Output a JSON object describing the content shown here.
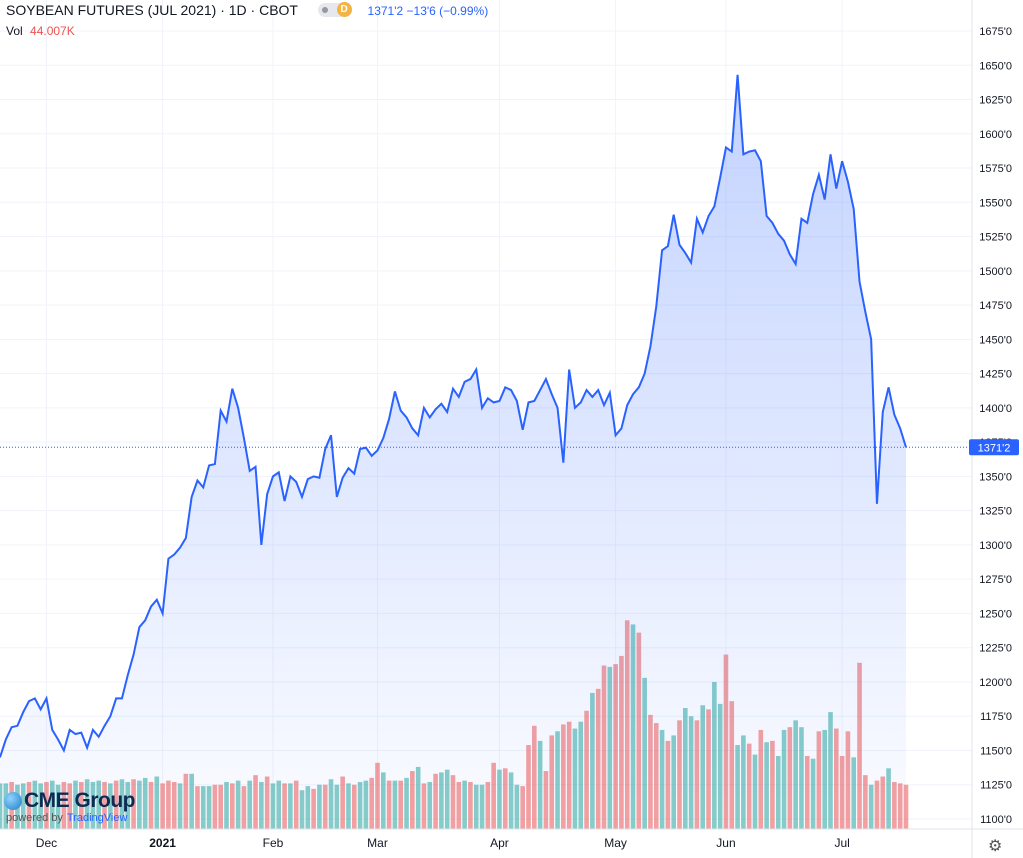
{
  "header": {
    "title": "SOYBEAN FUTURES (JUL 2021) · 1D · CBOT",
    "badge": "D",
    "quote": "1371'2 −13'6 (−0.99%)",
    "vol_label": "Vol",
    "vol_value": "44.007K"
  },
  "branding": {
    "logo_text": "CME Group",
    "powered_by": "powered by",
    "powered_brand": "TradingView"
  },
  "colors": {
    "line": "#2962ff",
    "vol_up": "#26a69a",
    "vol_down": "#ef5350",
    "price_tag": "#2962ff"
  },
  "icons": {
    "settings": "gear-icon"
  },
  "chart_data": {
    "type": "area",
    "y_ticks": [
      "1675'0",
      "1650'0",
      "1625'0",
      "1600'0",
      "1575'0",
      "1550'0",
      "1525'0",
      "1500'0",
      "1475'0",
      "1450'0",
      "1425'0",
      "1400'0",
      "1375'0",
      "1350'0",
      "1325'0",
      "1300'0",
      "1275'0",
      "1250'0",
      "1225'0",
      "1200'0",
      "1175'0",
      "1150'0",
      "1125'0",
      "1100'0"
    ],
    "y_tick_values": [
      1675,
      1650,
      1625,
      1600,
      1575,
      1550,
      1525,
      1500,
      1475,
      1450,
      1425,
      1400,
      1375,
      1350,
      1325,
      1300,
      1275,
      1250,
      1225,
      1200,
      1175,
      1150,
      1125,
      1100
    ],
    "ylim": [
      1100,
      1675
    ],
    "x_labels": [
      {
        "label": "Dec",
        "index": 8
      },
      {
        "label": "2021",
        "index": 28
      },
      {
        "label": "Feb",
        "index": 47
      },
      {
        "label": "Mar",
        "index": 65
      },
      {
        "label": "Apr",
        "index": 86
      },
      {
        "label": "May",
        "index": 106
      },
      {
        "label": "Jun",
        "index": 125
      },
      {
        "label": "Jul",
        "index": 145
      }
    ],
    "last_price": 1371.25,
    "last_price_label": "1371'2",
    "price": [
      1145,
      1158,
      1167,
      1168,
      1178,
      1186,
      1188,
      1180,
      1188,
      1165,
      1158,
      1150,
      1165,
      1162,
      1163,
      1152,
      1165,
      1160,
      1168,
      1175,
      1188,
      1188,
      1205,
      1220,
      1240,
      1245,
      1255,
      1260,
      1250,
      1290,
      1293,
      1298,
      1305,
      1335,
      1347,
      1342,
      1358,
      1359,
      1398,
      1390,
      1414,
      1400,
      1378,
      1354,
      1357,
      1300,
      1337,
      1350,
      1353,
      1332,
      1350,
      1346,
      1335,
      1348,
      1350,
      1349,
      1370,
      1380,
      1335,
      1349,
      1356,
      1352,
      1370,
      1371,
      1365,
      1369,
      1378,
      1392,
      1412,
      1398,
      1393,
      1385,
      1380,
      1400,
      1393,
      1399,
      1403,
      1397,
      1414,
      1408,
      1419,
      1421,
      1428,
      1400,
      1407,
      1404,
      1405,
      1415,
      1413,
      1405,
      1384,
      1404,
      1405,
      1413,
      1421,
      1410,
      1400,
      1360,
      1428,
      1400,
      1404,
      1413,
      1408,
      1413,
      1402,
      1411,
      1380,
      1385,
      1402,
      1410,
      1415,
      1425,
      1445,
      1474,
      1515,
      1518,
      1541,
      1519,
      1513,
      1506,
      1538,
      1528,
      1540,
      1547,
      1568,
      1590,
      1587,
      1643,
      1585,
      1587,
      1588,
      1580,
      1540,
      1535,
      1527,
      1522,
      1512,
      1505,
      1538,
      1535,
      1556,
      1570,
      1552,
      1585,
      1560,
      1580,
      1565,
      1545,
      1492,
      1470,
      1450,
      1330,
      1397,
      1415,
      1395,
      1385,
      1371.25
    ],
    "volume": [
      1126,
      1126,
      1127,
      1125,
      1126,
      1127,
      1128,
      1126,
      1127,
      1128,
      1125,
      1127,
      1126,
      1128,
      1127,
      1129,
      1127,
      1128,
      1127,
      1126,
      1128,
      1129,
      1127,
      1129,
      1128,
      1130,
      1127,
      1131,
      1126,
      1128,
      1127,
      1126,
      1133,
      1133,
      1124,
      1124,
      1124,
      1125,
      1125,
      1127,
      1126,
      1128,
      1124,
      1128,
      1132,
      1127,
      1131,
      1126,
      1128,
      1126,
      1126,
      1128,
      1121,
      1124,
      1122,
      1125,
      1125,
      1129,
      1125,
      1131,
      1126,
      1125,
      1127,
      1128,
      1130,
      1141,
      1134,
      1128,
      1128,
      1128,
      1130,
      1135,
      1138,
      1126,
      1127,
      1133,
      1134,
      1136,
      1132,
      1127,
      1128,
      1127,
      1125,
      1125,
      1127,
      1141,
      1136,
      1137,
      1134,
      1125,
      1124,
      1154,
      1168,
      1157,
      1135,
      1161,
      1164,
      1169,
      1171,
      1166,
      1171,
      1179,
      1192,
      1195,
      1212,
      1211,
      1213,
      1219,
      1245,
      1242,
      1236,
      1203,
      1176,
      1170,
      1165,
      1157,
      1161,
      1172,
      1181,
      1175,
      1172,
      1183,
      1180,
      1200,
      1184,
      1220,
      1186,
      1154,
      1161,
      1155,
      1147,
      1165,
      1156,
      1157,
      1146,
      1165,
      1167,
      1172,
      1167,
      1146,
      1144,
      1164,
      1165,
      1178,
      1166,
      1146,
      1164,
      1145,
      1214,
      1132,
      1125,
      1128,
      1131,
      1137,
      1127,
      1126,
      1125
    ],
    "volume_direction": [
      1,
      1,
      0,
      1,
      1,
      0,
      1,
      1,
      0,
      1,
      1,
      0,
      0,
      1,
      0,
      1,
      1,
      1,
      0,
      1,
      0,
      1,
      1,
      0,
      1,
      1,
      0,
      1,
      0,
      0,
      0,
      1,
      0,
      1,
      0,
      1,
      1,
      0,
      0,
      1,
      0,
      1,
      0,
      1,
      0,
      1,
      0,
      1,
      1,
      0,
      1,
      0,
      1,
      1,
      0,
      1,
      0,
      1,
      1,
      0,
      1,
      0,
      1,
      1,
      0,
      0,
      1,
      0,
      1,
      0,
      1,
      0,
      1,
      0,
      1,
      0,
      1,
      1,
      0,
      0,
      1,
      0,
      1,
      1,
      0,
      0,
      1,
      0,
      1,
      1,
      0,
      0,
      0,
      1,
      0,
      0,
      1,
      0,
      0,
      1,
      1,
      0,
      1,
      0,
      0,
      1,
      0,
      0,
      0,
      1,
      0,
      1,
      0,
      0,
      1,
      0,
      1,
      0,
      1,
      1,
      0,
      1,
      0,
      1,
      1,
      0,
      0,
      1,
      1,
      0,
      1,
      0,
      1,
      0,
      1,
      1,
      0,
      1,
      1,
      0,
      1,
      0,
      1,
      1,
      0,
      0,
      0,
      1,
      0,
      0,
      1,
      0,
      0,
      1,
      0,
      0
    ]
  }
}
